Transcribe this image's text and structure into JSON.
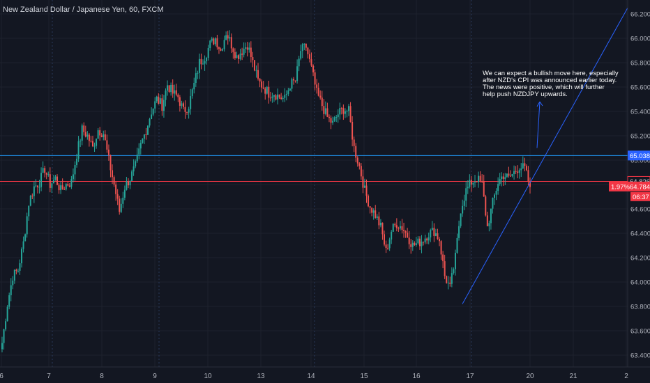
{
  "chart_data": {
    "type": "candlestick",
    "title": "New Zealand Dollar / Japanese Yen, 60, FXCM",
    "ylim": [
      63.35,
      66.25
    ],
    "y_ticks": [
      "66.200",
      "66.000",
      "65.800",
      "65.600",
      "65.400",
      "65.200",
      "65.000",
      "64.800",
      "64.600",
      "64.400",
      "64.200",
      "64.000",
      "63.800",
      "63.600",
      "63.400"
    ],
    "y_tick_values": [
      66.2,
      66.0,
      65.8,
      65.6,
      65.4,
      65.2,
      65.0,
      64.8,
      64.6,
      64.4,
      64.2,
      64.0,
      63.8,
      63.6,
      63.4
    ],
    "x_ticks": [
      "6",
      "7",
      "8",
      "9",
      "10",
      "13",
      "14",
      "15",
      "16",
      "17",
      "20",
      "21",
      "2"
    ],
    "horizontal_lines": [
      {
        "label": "65.038",
        "value": 65.038,
        "color": "#2196f3"
      },
      {
        "label": "64.826",
        "value": 64.826,
        "color": "#f23645"
      }
    ],
    "current_price": {
      "label": "64.784",
      "value": 64.784,
      "change": "1.97%",
      "countdown": "06:37",
      "color": "#f23645"
    },
    "trendline": {
      "from": [
        0.0,
        63.82
      ],
      "to": [
        1.0,
        66.25
      ],
      "start_label": "17",
      "color": "#2962ff"
    },
    "arrow": {
      "from": 65.1,
      "to": 65.48
    },
    "annotation": [
      "We can expect a bullish move here, especially",
      "after NZD's CPI was announced earlier today.",
      "The news were positive, which will further",
      "help push NZDJPY upwards."
    ],
    "anchors": [
      {
        "i": 0,
        "p": 63.5
      },
      {
        "i": 3,
        "p": 63.82
      },
      {
        "i": 6,
        "p": 64.05
      },
      {
        "i": 9,
        "p": 64.1
      },
      {
        "i": 12,
        "p": 64.32
      },
      {
        "i": 15,
        "p": 64.65
      },
      {
        "i": 18,
        "p": 64.78
      },
      {
        "i": 21,
        "p": 64.82
      },
      {
        "i": 24,
        "p": 64.93
      },
      {
        "i": 27,
        "p": 64.8
      },
      {
        "i": 30,
        "p": 64.85
      },
      {
        "i": 33,
        "p": 64.75
      },
      {
        "i": 36,
        "p": 64.8
      },
      {
        "i": 39,
        "p": 64.82
      },
      {
        "i": 42,
        "p": 65.05
      },
      {
        "i": 45,
        "p": 65.25
      },
      {
        "i": 48,
        "p": 65.2
      },
      {
        "i": 51,
        "p": 65.1
      },
      {
        "i": 54,
        "p": 65.25
      },
      {
        "i": 57,
        "p": 65.22
      },
      {
        "i": 60,
        "p": 65.0
      },
      {
        "i": 63,
        "p": 64.8
      },
      {
        "i": 66,
        "p": 64.58
      },
      {
        "i": 69,
        "p": 64.78
      },
      {
        "i": 72,
        "p": 64.85
      },
      {
        "i": 75,
        "p": 64.95
      },
      {
        "i": 78,
        "p": 65.12
      },
      {
        "i": 81,
        "p": 65.25
      },
      {
        "i": 84,
        "p": 65.4
      },
      {
        "i": 87,
        "p": 65.5
      },
      {
        "i": 90,
        "p": 65.45
      },
      {
        "i": 93,
        "p": 65.62
      },
      {
        "i": 96,
        "p": 65.55
      },
      {
        "i": 99,
        "p": 65.52
      },
      {
        "i": 102,
        "p": 65.4
      },
      {
        "i": 105,
        "p": 65.45
      },
      {
        "i": 108,
        "p": 65.62
      },
      {
        "i": 111,
        "p": 65.8
      },
      {
        "i": 114,
        "p": 65.85
      },
      {
        "i": 117,
        "p": 65.95
      },
      {
        "i": 120,
        "p": 66.0
      },
      {
        "i": 123,
        "p": 65.9
      },
      {
        "i": 126,
        "p": 66.05
      },
      {
        "i": 129,
        "p": 65.95
      },
      {
        "i": 132,
        "p": 65.85
      },
      {
        "i": 135,
        "p": 65.9
      },
      {
        "i": 138,
        "p": 65.95
      },
      {
        "i": 141,
        "p": 65.8
      },
      {
        "i": 144,
        "p": 65.65
      },
      {
        "i": 147,
        "p": 65.6
      },
      {
        "i": 150,
        "p": 65.55
      },
      {
        "i": 153,
        "p": 65.55
      },
      {
        "i": 156,
        "p": 65.52
      },
      {
        "i": 159,
        "p": 65.5
      },
      {
        "i": 162,
        "p": 65.62
      },
      {
        "i": 165,
        "p": 65.65
      },
      {
        "i": 168,
        "p": 65.9
      },
      {
        "i": 171,
        "p": 65.93
      },
      {
        "i": 174,
        "p": 65.75
      },
      {
        "i": 177,
        "p": 65.55
      },
      {
        "i": 180,
        "p": 65.45
      },
      {
        "i": 183,
        "p": 65.35
      },
      {
        "i": 186,
        "p": 65.3
      },
      {
        "i": 189,
        "p": 65.38
      },
      {
        "i": 192,
        "p": 65.42
      },
      {
        "i": 195,
        "p": 65.4
      },
      {
        "i": 198,
        "p": 65.1
      },
      {
        "i": 201,
        "p": 64.95
      },
      {
        "i": 204,
        "p": 64.75
      },
      {
        "i": 207,
        "p": 64.62
      },
      {
        "i": 210,
        "p": 64.55
      },
      {
        "i": 213,
        "p": 64.45
      },
      {
        "i": 216,
        "p": 64.25
      },
      {
        "i": 219,
        "p": 64.42
      },
      {
        "i": 222,
        "p": 64.48
      },
      {
        "i": 225,
        "p": 64.45
      },
      {
        "i": 228,
        "p": 64.38
      },
      {
        "i": 231,
        "p": 64.3
      },
      {
        "i": 234,
        "p": 64.32
      },
      {
        "i": 237,
        "p": 64.35
      },
      {
        "i": 240,
        "p": 64.4
      },
      {
        "i": 243,
        "p": 64.42
      },
      {
        "i": 246,
        "p": 64.35
      },
      {
        "i": 249,
        "p": 64.05
      },
      {
        "i": 252,
        "p": 63.95
      },
      {
        "i": 255,
        "p": 64.2
      },
      {
        "i": 258,
        "p": 64.6
      },
      {
        "i": 261,
        "p": 64.75
      },
      {
        "i": 264,
        "p": 64.82
      },
      {
        "i": 267,
        "p": 64.85
      },
      {
        "i": 270,
        "p": 64.8
      },
      {
        "i": 273,
        "p": 64.45
      },
      {
        "i": 276,
        "p": 64.65
      },
      {
        "i": 279,
        "p": 64.82
      },
      {
        "i": 282,
        "p": 64.88
      },
      {
        "i": 285,
        "p": 64.85
      },
      {
        "i": 288,
        "p": 64.9
      },
      {
        "i": 291,
        "p": 64.95
      },
      {
        "i": 294,
        "p": 64.93
      },
      {
        "i": 297,
        "p": 64.78
      }
    ]
  }
}
